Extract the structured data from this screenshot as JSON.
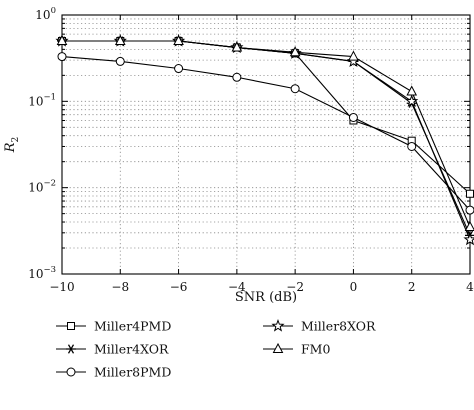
{
  "chart_data": {
    "type": "line",
    "title": "",
    "xlabel": "SNR (dB)",
    "ylabel": "R",
    "ylabel_subscript": "2",
    "xlim": [
      -10,
      4
    ],
    "ylim": [
      0.001,
      1
    ],
    "yscale": "log",
    "grid": true,
    "legend_position": "bottom",
    "x": [
      -10,
      -8,
      -6,
      -4,
      -2,
      0,
      2,
      4
    ],
    "x_tick_labels": [
      "−10",
      "−8",
      "−6",
      "−4",
      "−2",
      "0",
      "2",
      "4"
    ],
    "y_tick_labels": [
      {
        "base": "10",
        "exp": "0",
        "value": 1
      },
      {
        "base": "10",
        "exp": "−1",
        "value": 0.1
      },
      {
        "base": "10",
        "exp": "−2",
        "value": 0.01
      },
      {
        "base": "10",
        "exp": "−3",
        "value": 0.001
      }
    ],
    "series": [
      {
        "name": "Miller4PMD",
        "marker": "square",
        "values": [
          0.5,
          0.5,
          0.5,
          0.42,
          0.36,
          0.06,
          0.035,
          0.0085
        ]
      },
      {
        "name": "Miller4XOR",
        "marker": "asterisk",
        "values": [
          0.5,
          0.5,
          0.5,
          0.42,
          0.36,
          0.29,
          0.095,
          0.0028
        ]
      },
      {
        "name": "Miller8PMD",
        "marker": "circle",
        "values": [
          0.33,
          0.29,
          0.24,
          0.19,
          0.14,
          0.065,
          0.03,
          0.0055
        ]
      },
      {
        "name": "Miller8XOR",
        "marker": "star",
        "values": [
          0.5,
          0.5,
          0.5,
          0.42,
          0.36,
          0.29,
          0.1,
          0.0025
        ]
      },
      {
        "name": "FM0",
        "marker": "triangle",
        "values": [
          0.5,
          0.5,
          0.5,
          0.42,
          0.37,
          0.33,
          0.13,
          0.0035
        ]
      }
    ]
  }
}
